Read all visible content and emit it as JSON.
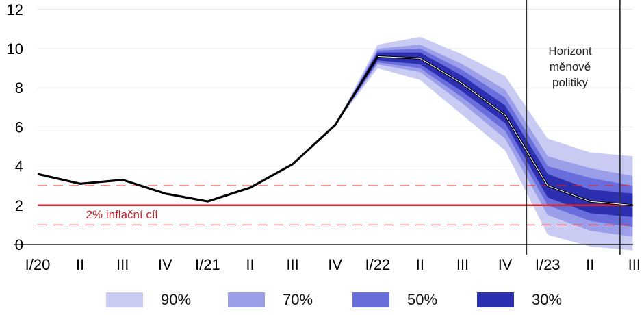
{
  "chart_data": {
    "type": "area",
    "x": [
      "I/20",
      "II",
      "III",
      "IV",
      "I/21",
      "II",
      "III",
      "IV",
      "I/22",
      "II",
      "III",
      "IV",
      "I/23",
      "II",
      "III"
    ],
    "ylim": [
      0,
      12
    ],
    "yticks": [
      0,
      2,
      4,
      6,
      8,
      10,
      12
    ],
    "grid": true,
    "series": [
      {
        "values": [
          3.6,
          3.1,
          3.3,
          2.6,
          2.2,
          2.9,
          4.1,
          6.1,
          9.6,
          9.5,
          8.2,
          6.6,
          3.0,
          2.2,
          2.0
        ]
      }
    ],
    "fan_start_index": 8,
    "bands": {
      "90%": {
        "lower": [
          9.0,
          8.4,
          6.6,
          4.8,
          0.5,
          -0.1,
          -0.3
        ],
        "upper": [
          10.2,
          10.6,
          9.7,
          8.6,
          5.4,
          4.7,
          4.5
        ]
      },
      "70%": {
        "lower": [
          9.2,
          8.8,
          7.2,
          5.4,
          1.5,
          0.7,
          0.4
        ],
        "upper": [
          10.0,
          10.2,
          9.2,
          7.9,
          4.5,
          3.9,
          3.5
        ]
      },
      "50%": {
        "lower": [
          9.3,
          9.0,
          7.5,
          5.8,
          2.0,
          1.2,
          0.9
        ],
        "upper": [
          9.9,
          10.0,
          8.9,
          7.5,
          4.0,
          3.4,
          3.0
        ]
      },
      "30%": {
        "lower": [
          9.4,
          9.2,
          7.8,
          6.2,
          2.4,
          1.6,
          1.4
        ],
        "upper": [
          9.8,
          9.8,
          8.6,
          7.1,
          3.6,
          2.8,
          2.6
        ]
      }
    },
    "inflation_target": {
      "value": 2,
      "label": "2% inflační cíl",
      "tolerance": [
        1,
        3
      ]
    },
    "policy_horizon": {
      "label": [
        "Horizont",
        "měnové",
        "politiky"
      ],
      "start": 11.5,
      "end": 13.7
    },
    "legend": [
      {
        "label": "90%",
        "color": "#c9cbf2"
      },
      {
        "label": "70%",
        "color": "#9b9ee8"
      },
      {
        "label": "50%",
        "color": "#6a6edd"
      },
      {
        "label": "30%",
        "color": "#2b2fb0"
      }
    ],
    "colors": {
      "line": "#000000",
      "target": "#d7262e",
      "grid": "#e3e3e3",
      "axis": "#000000"
    }
  }
}
